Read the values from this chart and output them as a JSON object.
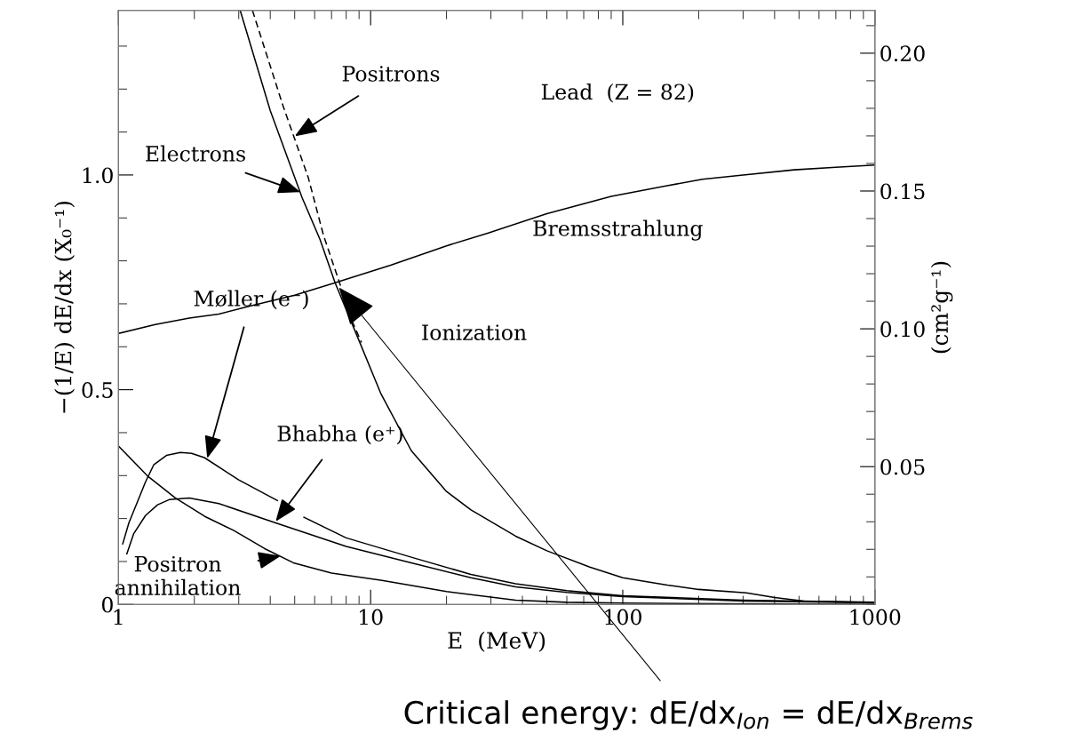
{
  "chart_data": {
    "type": "line",
    "xlabel": "E  (MeV)",
    "ylabel": "−(1/E) dE/dx (X₀⁻¹)",
    "y2label": "(cm²g⁻¹)",
    "log": "x",
    "xlim": [
      1,
      1000
    ],
    "xticks": [
      1,
      10,
      100,
      1000
    ],
    "ylim": [
      0,
      1.383
    ],
    "yticks": [
      0,
      {
        "value": 0.5,
        "label": "0.5"
      },
      {
        "value": 1.0,
        "label": "1.0"
      }
    ],
    "y2lim": [
      0,
      0.2155
    ],
    "y2ticks": [
      {
        "value": 0.05,
        "label": "0.05"
      },
      {
        "value": 0.1,
        "label": "0.10"
      },
      {
        "value": 0.15,
        "label": "0.15"
      },
      {
        "value": 0.2,
        "label": "0.20"
      }
    ],
    "grid": false,
    "marker": "none",
    "series": [
      {
        "color": "#000000",
        "line_style": "solid",
        "x": [
          3.04,
          4.0,
          5.36,
          6.3,
          7.23,
          8.9,
          11,
          14.5,
          20,
          25,
          37.6,
          50,
          74,
          100,
          150,
          200,
          309,
          400,
          522,
          1000
        ],
        "values": [
          1.383,
          1.15,
          0.946,
          0.85,
          0.749,
          0.621,
          0.49,
          0.358,
          0.263,
          0.22,
          0.159,
          0.125,
          0.087,
          0.062,
          0.045,
          0.035,
          0.027,
          0.016,
          0.008,
          0.004
        ]
      },
      {
        "color": "#000000",
        "line_style": "dashed",
        "x": [
          3.4,
          4.5,
          5.66,
          6.5,
          7.5,
          8.5,
          9.2
        ],
        "values": [
          1.383,
          1.16,
          0.994,
          0.86,
          0.752,
          0.656,
          0.61
        ]
      },
      {
        "color": "#000000",
        "line_style": "solid",
        "x": [
          1,
          1.4,
          1.91,
          2.5,
          3.29,
          5,
          7.23,
          12,
          20,
          29.3,
          50,
          90,
          150,
          207,
          300,
          479,
          700,
          1000
        ],
        "values": [
          0.631,
          0.652,
          0.667,
          0.676,
          0.694,
          0.72,
          0.749,
          0.79,
          0.835,
          0.865,
          0.91,
          0.95,
          0.975,
          0.99,
          1.0,
          1.012,
          1.018,
          1.023
        ]
      },
      {
        "color": "#000000",
        "line_style": "solid",
        "x": [
          1.04,
          1.1,
          1.18,
          1.28,
          1.38,
          1.55,
          1.76,
          1.95,
          2.19,
          3,
          4.27,
          4.8,
          5.44,
          8,
          14.5,
          25,
          37.6,
          60,
          100,
          300,
          1000
        ],
        "values": [
          0.141,
          0.19,
          0.234,
          0.285,
          0.325,
          0.347,
          0.354,
          0.352,
          0.342,
          0.29,
          0.242,
          null,
          0.203,
          0.155,
          0.11,
          0.07,
          0.048,
          0.032,
          0.02,
          0.01,
          0.005
        ]
      },
      {
        "color": "#000000",
        "line_style": "solid",
        "x": [
          1.08,
          1.15,
          1.28,
          1.43,
          1.59,
          1.91,
          2.5,
          4.2,
          8,
          14.5,
          25,
          37.6,
          60,
          100,
          300,
          1000
        ],
        "values": [
          0.118,
          0.165,
          0.207,
          0.232,
          0.244,
          0.248,
          0.235,
          0.19,
          0.135,
          0.097,
          0.062,
          0.041,
          0.028,
          0.018,
          0.008,
          0.004
        ]
      },
      {
        "color": "#000000",
        "line_style": "solid",
        "x": [
          1,
          1.3,
          1.68,
          2.2,
          2.87,
          3.8,
          4.94,
          7,
          11.1,
          20,
          37.6,
          60,
          100,
          1000
        ],
        "values": [
          0.369,
          0.3,
          0.248,
          0.205,
          0.172,
          0.13,
          0.097,
          0.073,
          0.056,
          0.03,
          0.01,
          0.005,
          0.003,
          0.0
        ]
      }
    ],
    "annotations": [
      {
        "text": "Positrons",
        "x": 5.0,
        "y": 1.09
      },
      {
        "text": "Electrons",
        "x": 5.27,
        "y": 0.96
      },
      "Lead  (Z = 82)",
      "Bremsstrahlung",
      "Ionization",
      {
        "text": "Møller (e⁻)",
        "x": 2.25,
        "y": 0.34
      },
      {
        "text": "Bhabha (e⁺)",
        "x": 4.2,
        "y": 0.193
      },
      {
        "text": "Positron\nannihilation",
        "x": 4.4,
        "y": 0.113
      },
      {
        "text": "Critical energy: dE/dx$_{Ion}$ = dE/dx$_{Brems}$",
        "x": 7.23,
        "y": 0.749
      }
    ]
  }
}
